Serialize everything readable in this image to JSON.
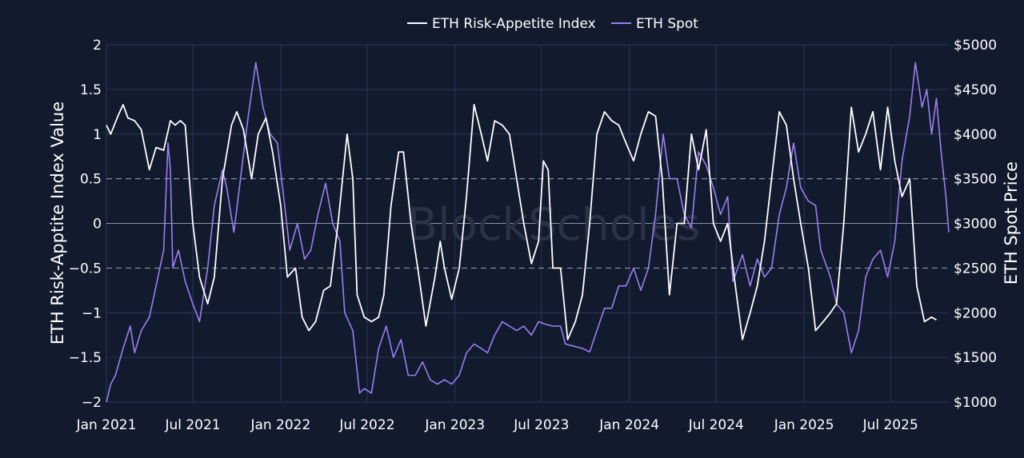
{
  "chart_data": {
    "type": "line",
    "legend": {
      "placement": "top-center"
    },
    "watermark": "BlockScholes",
    "xaxis": {
      "range": [
        "2021-01-01",
        "2025-10-31"
      ],
      "ticks": [
        {
          "date": "2021-01-01",
          "label": "Jan 2021"
        },
        {
          "date": "2021-07-01",
          "label": "Jul 2021"
        },
        {
          "date": "2022-01-01",
          "label": "Jan 2022"
        },
        {
          "date": "2022-07-01",
          "label": "Jul 2022"
        },
        {
          "date": "2023-01-01",
          "label": "Jan 2023"
        },
        {
          "date": "2023-07-01",
          "label": "Jul 2023"
        },
        {
          "date": "2024-01-01",
          "label": "Jan 2024"
        },
        {
          "date": "2024-07-01",
          "label": "Jul 2024"
        },
        {
          "date": "2025-01-01",
          "label": "Jan 2025"
        },
        {
          "date": "2025-07-01",
          "label": "Jul 2025"
        }
      ]
    },
    "yaxis_left": {
      "title": "ETH Risk-Apptite Index Value",
      "range": [
        -2,
        2
      ],
      "ticks": [
        {
          "v": 2,
          "label": "2"
        },
        {
          "v": 1.5,
          "label": "1.5"
        },
        {
          "v": 1,
          "label": "1"
        },
        {
          "v": 0.5,
          "label": "0.5"
        },
        {
          "v": 0,
          "label": "0"
        },
        {
          "v": -0.5,
          "label": "−0.5"
        },
        {
          "v": -1,
          "label": "−1"
        },
        {
          "v": -1.5,
          "label": "−1.5"
        },
        {
          "v": -2,
          "label": "−2"
        }
      ],
      "dashed_lines": [
        0.5,
        -0.5
      ],
      "solid_line": 0
    },
    "yaxis_right": {
      "title": "ETH Spot Price",
      "range": [
        1000,
        5000
      ],
      "ticks": [
        {
          "v": 5000,
          "label": "$5000"
        },
        {
          "v": 4500,
          "label": "$4500"
        },
        {
          "v": 4000,
          "label": "$4000"
        },
        {
          "v": 3500,
          "label": "$3500"
        },
        {
          "v": 3000,
          "label": "$3000"
        },
        {
          "v": 2500,
          "label": "$2500"
        },
        {
          "v": 2000,
          "label": "$2000"
        },
        {
          "v": 1500,
          "label": "$1500"
        },
        {
          "v": 1000,
          "label": "$1000"
        }
      ]
    },
    "grid": true,
    "series": [
      {
        "name": "ETH Risk-Appetite Index",
        "axis": "left",
        "color": "#ffffff",
        "points": [
          [
            "2021-01-01",
            1.1
          ],
          [
            "2021-01-10",
            1.0
          ],
          [
            "2021-01-25",
            1.2
          ],
          [
            "2021-02-05",
            1.33
          ],
          [
            "2021-02-15",
            1.18
          ],
          [
            "2021-03-01",
            1.15
          ],
          [
            "2021-03-15",
            1.05
          ],
          [
            "2021-04-01",
            0.6
          ],
          [
            "2021-04-15",
            0.85
          ],
          [
            "2021-05-01",
            0.82
          ],
          [
            "2021-05-15",
            1.15
          ],
          [
            "2021-05-25",
            1.1
          ],
          [
            "2021-06-05",
            1.15
          ],
          [
            "2021-06-15",
            1.1
          ],
          [
            "2021-07-01",
            0.0
          ],
          [
            "2021-07-15",
            -0.6
          ],
          [
            "2021-08-01",
            -0.9
          ],
          [
            "2021-08-15",
            -0.6
          ],
          [
            "2021-09-01",
            0.5
          ],
          [
            "2021-09-20",
            1.1
          ],
          [
            "2021-10-01",
            1.25
          ],
          [
            "2021-10-15",
            1.05
          ],
          [
            "2021-11-01",
            0.5
          ],
          [
            "2021-11-15",
            1.0
          ],
          [
            "2021-12-01",
            1.18
          ],
          [
            "2021-12-15",
            0.8
          ],
          [
            "2022-01-01",
            0.2
          ],
          [
            "2022-01-15",
            -0.6
          ],
          [
            "2022-02-01",
            -0.5
          ],
          [
            "2022-02-15",
            -1.05
          ],
          [
            "2022-03-01",
            -1.2
          ],
          [
            "2022-03-15",
            -1.1
          ],
          [
            "2022-04-01",
            -0.75
          ],
          [
            "2022-04-15",
            -0.7
          ],
          [
            "2022-05-01",
            0.0
          ],
          [
            "2022-05-20",
            1.0
          ],
          [
            "2022-06-01",
            0.5
          ],
          [
            "2022-06-10",
            -0.8
          ],
          [
            "2022-06-25",
            -1.05
          ],
          [
            "2022-07-10",
            -1.1
          ],
          [
            "2022-07-25",
            -1.05
          ],
          [
            "2022-08-05",
            -0.8
          ],
          [
            "2022-08-20",
            0.2
          ],
          [
            "2022-09-05",
            0.8
          ],
          [
            "2022-09-15",
            0.8
          ],
          [
            "2022-10-01",
            0.0
          ],
          [
            "2022-10-15",
            -0.5
          ],
          [
            "2022-11-01",
            -1.15
          ],
          [
            "2022-11-20",
            -0.6
          ],
          [
            "2022-12-01",
            -0.2
          ],
          [
            "2022-12-10",
            -0.5
          ],
          [
            "2022-12-25",
            -0.85
          ],
          [
            "2023-01-10",
            -0.5
          ],
          [
            "2023-01-25",
            0.3
          ],
          [
            "2023-02-10",
            1.33
          ],
          [
            "2023-02-25",
            1.0
          ],
          [
            "2023-03-10",
            0.7
          ],
          [
            "2023-03-25",
            1.15
          ],
          [
            "2023-04-10",
            1.1
          ],
          [
            "2023-04-25",
            1.0
          ],
          [
            "2023-05-10",
            0.5
          ],
          [
            "2023-05-25",
            0.0
          ],
          [
            "2023-06-10",
            -0.45
          ],
          [
            "2023-06-25",
            -0.2
          ],
          [
            "2023-07-05",
            0.7
          ],
          [
            "2023-07-15",
            0.6
          ],
          [
            "2023-07-25",
            -0.5
          ],
          [
            "2023-08-10",
            -0.5
          ],
          [
            "2023-08-25",
            -1.3
          ],
          [
            "2023-09-10",
            -1.1
          ],
          [
            "2023-09-25",
            -0.8
          ],
          [
            "2023-10-10",
            0.0
          ],
          [
            "2023-10-25",
            1.0
          ],
          [
            "2023-11-10",
            1.25
          ],
          [
            "2023-11-25",
            1.15
          ],
          [
            "2023-12-10",
            1.1
          ],
          [
            "2023-12-25",
            0.9
          ],
          [
            "2024-01-10",
            0.7
          ],
          [
            "2024-01-25",
            1.0
          ],
          [
            "2024-02-10",
            1.25
          ],
          [
            "2024-02-25",
            1.2
          ],
          [
            "2024-03-10",
            0.5
          ],
          [
            "2024-03-25",
            -0.8
          ],
          [
            "2024-04-10",
            0.0
          ],
          [
            "2024-04-25",
            0.0
          ],
          [
            "2024-05-10",
            1.0
          ],
          [
            "2024-05-25",
            0.6
          ],
          [
            "2024-06-10",
            1.05
          ],
          [
            "2024-06-25",
            0.0
          ],
          [
            "2024-07-10",
            -0.2
          ],
          [
            "2024-07-25",
            0.0
          ],
          [
            "2024-08-10",
            -0.7
          ],
          [
            "2024-08-25",
            -1.3
          ],
          [
            "2024-09-10",
            -1.0
          ],
          [
            "2024-09-25",
            -0.7
          ],
          [
            "2024-10-10",
            -0.2
          ],
          [
            "2024-10-25",
            0.5
          ],
          [
            "2024-11-10",
            1.25
          ],
          [
            "2024-11-25",
            1.1
          ],
          [
            "2024-12-10",
            0.5
          ],
          [
            "2024-12-25",
            0.0
          ],
          [
            "2025-01-10",
            -0.5
          ],
          [
            "2025-01-25",
            -1.2
          ],
          [
            "2025-02-10",
            -1.1
          ],
          [
            "2025-02-25",
            -1.0
          ],
          [
            "2025-03-10",
            -0.9
          ],
          [
            "2025-03-25",
            0.0
          ],
          [
            "2025-04-10",
            1.3
          ],
          [
            "2025-04-25",
            0.8
          ],
          [
            "2025-05-10",
            1.0
          ],
          [
            "2025-05-25",
            1.25
          ],
          [
            "2025-06-10",
            0.6
          ],
          [
            "2025-06-25",
            1.3
          ],
          [
            "2025-07-10",
            0.7
          ],
          [
            "2025-07-25",
            0.3
          ],
          [
            "2025-08-10",
            0.5
          ],
          [
            "2025-08-25",
            -0.7
          ],
          [
            "2025-09-10",
            -1.1
          ],
          [
            "2025-09-25",
            -1.05
          ],
          [
            "2025-10-05",
            -1.08
          ]
        ]
      },
      {
        "name": "ETH Spot",
        "axis": "right",
        "color": "#9b7ff0",
        "points": [
          [
            "2021-01-01",
            1000
          ],
          [
            "2021-01-10",
            1200
          ],
          [
            "2021-01-20",
            1300
          ],
          [
            "2021-02-05",
            1600
          ],
          [
            "2021-02-20",
            1850
          ],
          [
            "2021-03-01",
            1550
          ],
          [
            "2021-03-15",
            1800
          ],
          [
            "2021-04-01",
            1950
          ],
          [
            "2021-04-15",
            2300
          ],
          [
            "2021-05-01",
            2700
          ],
          [
            "2021-05-10",
            3900
          ],
          [
            "2021-05-15",
            3600
          ],
          [
            "2021-05-20",
            2500
          ],
          [
            "2021-06-01",
            2700
          ],
          [
            "2021-06-15",
            2350
          ],
          [
            "2021-07-01",
            2100
          ],
          [
            "2021-07-15",
            1900
          ],
          [
            "2021-08-01",
            2500
          ],
          [
            "2021-08-15",
            3200
          ],
          [
            "2021-09-01",
            3600
          ],
          [
            "2021-09-10",
            3400
          ],
          [
            "2021-09-25",
            2900
          ],
          [
            "2021-10-10",
            3550
          ],
          [
            "2021-10-25",
            4200
          ],
          [
            "2021-11-10",
            4800
          ],
          [
            "2021-11-25",
            4300
          ],
          [
            "2021-12-10",
            4000
          ],
          [
            "2021-12-25",
            3900
          ],
          [
            "2022-01-05",
            3400
          ],
          [
            "2022-01-20",
            2700
          ],
          [
            "2022-02-05",
            3000
          ],
          [
            "2022-02-20",
            2600
          ],
          [
            "2022-03-05",
            2700
          ],
          [
            "2022-03-20",
            3100
          ],
          [
            "2022-04-05",
            3450
          ],
          [
            "2022-04-20",
            3000
          ],
          [
            "2022-05-05",
            2800
          ],
          [
            "2022-05-15",
            2000
          ],
          [
            "2022-06-01",
            1800
          ],
          [
            "2022-06-15",
            1100
          ],
          [
            "2022-06-25",
            1150
          ],
          [
            "2022-07-10",
            1100
          ],
          [
            "2022-07-25",
            1600
          ],
          [
            "2022-08-10",
            1850
          ],
          [
            "2022-08-25",
            1500
          ],
          [
            "2022-09-10",
            1700
          ],
          [
            "2022-09-25",
            1300
          ],
          [
            "2022-10-10",
            1300
          ],
          [
            "2022-10-25",
            1450
          ],
          [
            "2022-11-10",
            1250
          ],
          [
            "2022-11-25",
            1200
          ],
          [
            "2022-12-10",
            1250
          ],
          [
            "2022-12-25",
            1200
          ],
          [
            "2023-01-10",
            1300
          ],
          [
            "2023-01-25",
            1550
          ],
          [
            "2023-02-10",
            1650
          ],
          [
            "2023-02-25",
            1600
          ],
          [
            "2023-03-10",
            1550
          ],
          [
            "2023-03-25",
            1750
          ],
          [
            "2023-04-10",
            1900
          ],
          [
            "2023-04-25",
            1850
          ],
          [
            "2023-05-10",
            1800
          ],
          [
            "2023-05-25",
            1850
          ],
          [
            "2023-06-10",
            1750
          ],
          [
            "2023-06-25",
            1900
          ],
          [
            "2023-07-10",
            1870
          ],
          [
            "2023-07-25",
            1850
          ],
          [
            "2023-08-10",
            1850
          ],
          [
            "2023-08-20",
            1650
          ],
          [
            "2023-09-10",
            1620
          ],
          [
            "2023-09-25",
            1600
          ],
          [
            "2023-10-10",
            1560
          ],
          [
            "2023-10-25",
            1800
          ],
          [
            "2023-11-10",
            2050
          ],
          [
            "2023-11-25",
            2050
          ],
          [
            "2023-12-10",
            2300
          ],
          [
            "2023-12-25",
            2300
          ],
          [
            "2024-01-10",
            2500
          ],
          [
            "2024-01-25",
            2250
          ],
          [
            "2024-02-10",
            2500
          ],
          [
            "2024-02-25",
            3100
          ],
          [
            "2024-03-12",
            4000
          ],
          [
            "2024-03-25",
            3500
          ],
          [
            "2024-04-10",
            3500
          ],
          [
            "2024-04-25",
            3100
          ],
          [
            "2024-05-10",
            2950
          ],
          [
            "2024-05-25",
            3800
          ],
          [
            "2024-06-10",
            3650
          ],
          [
            "2024-06-25",
            3400
          ],
          [
            "2024-07-10",
            3100
          ],
          [
            "2024-07-25",
            3300
          ],
          [
            "2024-08-05",
            2350
          ],
          [
            "2024-08-25",
            2650
          ],
          [
            "2024-09-10",
            2300
          ],
          [
            "2024-09-25",
            2600
          ],
          [
            "2024-10-10",
            2400
          ],
          [
            "2024-10-25",
            2500
          ],
          [
            "2024-11-10",
            3100
          ],
          [
            "2024-11-25",
            3400
          ],
          [
            "2024-12-10",
            3900
          ],
          [
            "2024-12-25",
            3400
          ],
          [
            "2025-01-10",
            3250
          ],
          [
            "2025-01-25",
            3200
          ],
          [
            "2025-02-05",
            2700
          ],
          [
            "2025-02-25",
            2400
          ],
          [
            "2025-03-10",
            2100
          ],
          [
            "2025-03-25",
            2000
          ],
          [
            "2025-04-10",
            1550
          ],
          [
            "2025-04-25",
            1800
          ],
          [
            "2025-05-10",
            2400
          ],
          [
            "2025-05-25",
            2600
          ],
          [
            "2025-06-10",
            2700
          ],
          [
            "2025-06-25",
            2400
          ],
          [
            "2025-07-10",
            2800
          ],
          [
            "2025-07-25",
            3700
          ],
          [
            "2025-08-10",
            4200
          ],
          [
            "2025-08-22",
            4800
          ],
          [
            "2025-09-05",
            4300
          ],
          [
            "2025-09-15",
            4500
          ],
          [
            "2025-09-25",
            4000
          ],
          [
            "2025-10-05",
            4400
          ],
          [
            "2025-10-15",
            3800
          ],
          [
            "2025-10-25",
            3300
          ],
          [
            "2025-10-31",
            2900
          ]
        ]
      }
    ]
  }
}
